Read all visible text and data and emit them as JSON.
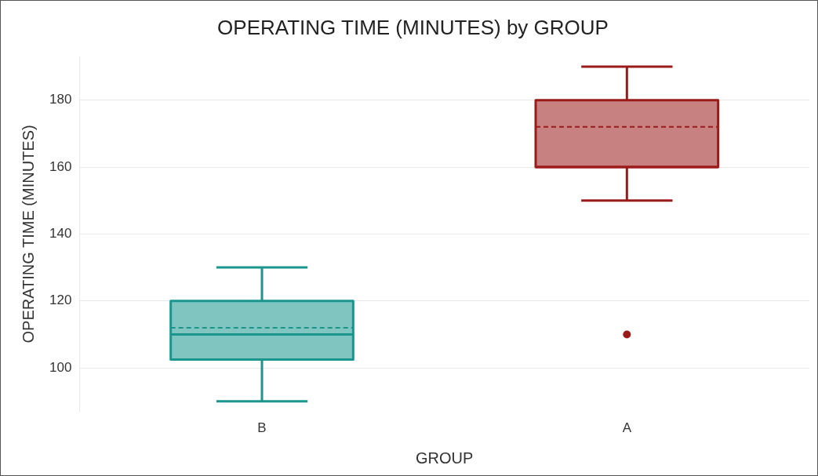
{
  "chart_data": {
    "type": "box",
    "title": "OPERATING TIME (MINUTES) by GROUP",
    "xlabel": "GROUP",
    "ylabel": "OPERATING TIME (MINUTES)",
    "categories": [
      "B",
      "A"
    ],
    "colors": [
      "#1a968e",
      "#9b1a1a"
    ],
    "boxes": [
      {
        "low": 90,
        "q1": 102.5,
        "median": 110,
        "q3": 120,
        "high": 130,
        "mean": 112
      },
      {
        "low": 150,
        "q1": 160,
        "median": 160,
        "q3": 180,
        "high": 190,
        "mean": 172,
        "outliers": [
          110
        ]
      }
    ],
    "ylim": [
      87,
      193
    ],
    "yticks": [
      100,
      120,
      140,
      160,
      180
    ],
    "grid": "y",
    "legend": false
  }
}
